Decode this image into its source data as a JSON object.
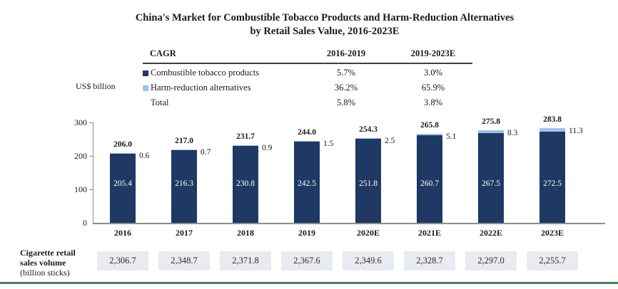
{
  "title": {
    "line1": "China's Market for Combustible Tobacco Products and Harm-Reduction Alternatives",
    "line2": "by Retail Sales Value, 2016-2023E"
  },
  "y_axis_unit": "US$ billion",
  "cagr_table": {
    "col_headers": [
      "CAGR",
      "2016-2019",
      "2019-2023E"
    ],
    "rows": [
      {
        "label": "Combustible tobacco products",
        "swatch_color": "#1f3864",
        "cagr_2016_2019": "5.7%",
        "cagr_2019_2023e": "3.0%"
      },
      {
        "label": "Harm-reduction alternatives",
        "swatch_color": "#9dc3e6",
        "cagr_2016_2019": "36.2%",
        "cagr_2019_2023e": "65.9%"
      },
      {
        "label": "Total",
        "swatch_color": null,
        "cagr_2016_2019": "5.8%",
        "cagr_2019_2023e": "3.8%"
      }
    ]
  },
  "chart_data": {
    "type": "bar",
    "stacked": true,
    "title": "China's Market for Combustible Tobacco Products and Harm-Reduction Alternatives by Retail Sales Value, 2016-2023E",
    "ylabel": "US$ billion",
    "ylim": [
      0,
      300
    ],
    "y_ticks": [
      0,
      100,
      200,
      300
    ],
    "y_tick_labels": [
      "0",
      "100",
      "200",
      "300"
    ],
    "grid": false,
    "legend_position": "table-above-chart",
    "categories": [
      "2016",
      "2017",
      "2018",
      "2019",
      "2020E",
      "2021E",
      "2022E",
      "2023E"
    ],
    "series": [
      {
        "name": "Combustible tobacco products",
        "color": "#1f3864",
        "values": [
          205.4,
          216.3,
          230.8,
          242.5,
          251.8,
          260.7,
          267.5,
          272.5
        ],
        "labels": [
          "205.4",
          "216.3",
          "230.8",
          "242.5",
          "251.8",
          "260.7",
          "267.5",
          "272.5"
        ]
      },
      {
        "name": "Harm-reduction alternatives",
        "color": "#9dc3e6",
        "values": [
          0.6,
          0.7,
          0.9,
          1.5,
          2.5,
          5.1,
          8.3,
          11.3
        ],
        "labels": [
          "0.6",
          "0.7",
          "0.9",
          "1.5",
          "2.5",
          "5.1",
          "8.3",
          "11.3"
        ]
      }
    ],
    "totals": [
      206.0,
      217.0,
      231.7,
      244.0,
      254.3,
      265.8,
      275.8,
      283.8
    ],
    "total_labels": [
      "206.0",
      "217.0",
      "231.7",
      "244.0",
      "254.3",
      "265.8",
      "275.8",
      "283.8"
    ]
  },
  "footer": {
    "label_lines": [
      "Cigarette retail",
      "sales volume",
      "(billion sticks)"
    ],
    "values": [
      "2,306.7",
      "2,348.7",
      "2,371.8",
      "2,367.6",
      "2,349.6",
      "2,328.7",
      "2,297.0",
      "2,255.7"
    ]
  },
  "colors": {
    "combustible_bar": "#1f3864",
    "harm_reduction_bar": "#9dc3e6",
    "axis": "#8c8c8c",
    "footer_box_bg": "#e8ecf1",
    "bottom_rule_green": "#4e7d60",
    "bar_inside_label": "#ffffff",
    "text": "#1a1a1a"
  }
}
